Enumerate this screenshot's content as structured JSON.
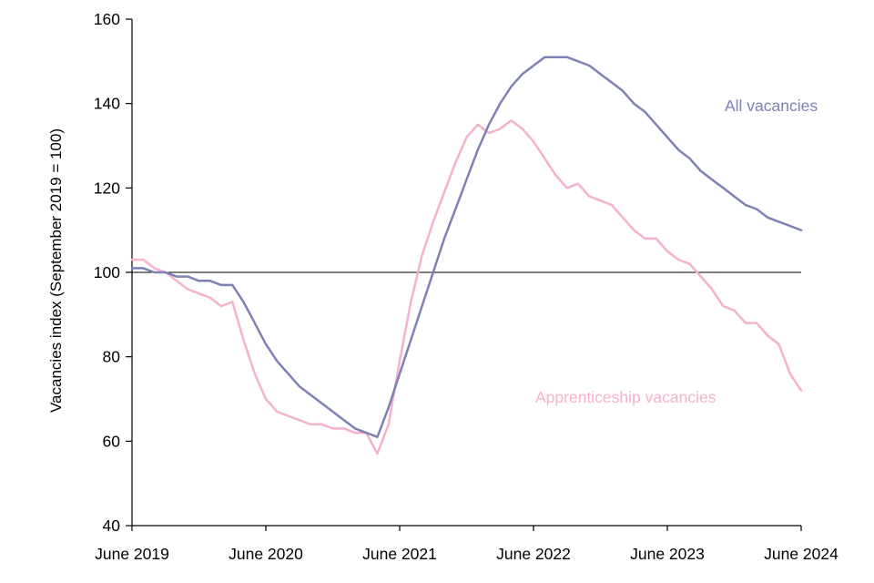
{
  "chart_data": {
    "type": "line",
    "title": "",
    "xlabel": "",
    "ylabel": "Vacancies index (September 2019 = 100)",
    "ylim": [
      40,
      160
    ],
    "y_ticks": [
      40,
      60,
      80,
      100,
      120,
      140,
      160
    ],
    "x_tick_labels": [
      "June 2019",
      "June 2020",
      "June 2021",
      "June 2022",
      "June 2023",
      "June 2024"
    ],
    "x_interval": "monthly",
    "x_start": "June 2019",
    "x_end": "June 2024",
    "reference_line": 100,
    "grid": false,
    "legend_position": "inline-labels-on-chart",
    "axis_color": "#000000",
    "series": [
      {
        "name": "Apprenticeship vacancies",
        "color": "#f5b1ce",
        "values": [
          103,
          103,
          101,
          100,
          98,
          96,
          95,
          94,
          92,
          93,
          84,
          76,
          70,
          67,
          66,
          65,
          64,
          64,
          63,
          63,
          62,
          62,
          57,
          64,
          79,
          93,
          104,
          112,
          119,
          126,
          132,
          135,
          133,
          134,
          136,
          134,
          131,
          127,
          123,
          120,
          121,
          118,
          117,
          116,
          113,
          110,
          108,
          108,
          105,
          103,
          102,
          99,
          96,
          92,
          91,
          88,
          88,
          85,
          83,
          76,
          72
        ]
      },
      {
        "name": "All vacancies",
        "color": "#7e81b5",
        "values": [
          101,
          101,
          100,
          100,
          99,
          99,
          98,
          98,
          97,
          97,
          93,
          88,
          83,
          79,
          76,
          73,
          71,
          69,
          67,
          65,
          63,
          62,
          61,
          68,
          76,
          84,
          92,
          100,
          108,
          115,
          122,
          129,
          135,
          140,
          144,
          147,
          149,
          151,
          151,
          151,
          150,
          149,
          147,
          145,
          143,
          140,
          138,
          135,
          132,
          129,
          127,
          124,
          122,
          120,
          118,
          116,
          115,
          113,
          112,
          111,
          110
        ]
      }
    ]
  }
}
